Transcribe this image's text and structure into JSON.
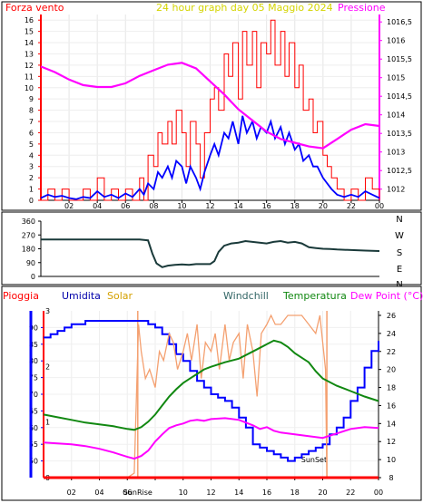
{
  "chart_data": [
    {
      "type": "line",
      "title": "24 hour graph day   05 Maggio 2024",
      "left_label": "Forza vento",
      "right_label": "Pressione",
      "x_ticks": [
        "02",
        "04",
        "06",
        "08",
        "10",
        "12",
        "14",
        "16",
        "18",
        "20",
        "22",
        "00"
      ],
      "left_ticks": [
        "0",
        "1",
        "2",
        "3",
        "4",
        "5",
        "6",
        "7",
        "8",
        "9",
        "10",
        "11",
        "12",
        "13",
        "14",
        "15",
        "16"
      ],
      "right_ticks": [
        "1012",
        "1012,5",
        "1013",
        "1013,5",
        "1014",
        "1014,5",
        "1015",
        "1015,5",
        "1016",
        "1016,5"
      ],
      "ylim_left": [
        0,
        16.5
      ],
      "ylim_right": [
        1011.7,
        1016.7
      ],
      "x_range_hours": [
        0,
        24
      ],
      "series": [
        {
          "color": "#ff0000",
          "x": [
            0,
            0.5,
            1,
            1.5,
            2,
            2.5,
            3,
            3.5,
            4,
            4.5,
            5,
            5.5,
            6,
            6.5,
            7,
            7.3,
            7.6,
            8,
            8.3,
            8.6,
            9,
            9.3,
            9.6,
            10,
            10.3,
            10.6,
            11,
            11.3,
            11.6,
            12,
            12.3,
            12.6,
            13,
            13.3,
            13.6,
            14,
            14.3,
            14.6,
            15,
            15.3,
            15.6,
            16,
            16.3,
            16.6,
            17,
            17.3,
            17.6,
            18,
            18.3,
            18.6,
            19,
            19.3,
            19.6,
            20,
            20.3,
            20.6,
            21,
            21.5,
            22,
            22.5,
            23,
            23.5,
            24
          ],
          "values": [
            0,
            1,
            0,
            1,
            0,
            0,
            1,
            0,
            2,
            0,
            1,
            0,
            1,
            0,
            2,
            0,
            4,
            3,
            6,
            5,
            7,
            5,
            8,
            6,
            3,
            7,
            5,
            2,
            6,
            9,
            10,
            8,
            13,
            11,
            14,
            9,
            15,
            12,
            15,
            10,
            14,
            13,
            16,
            12,
            15,
            11,
            14,
            10,
            12,
            8,
            9,
            6,
            7,
            4,
            3,
            2,
            1,
            0,
            1,
            0,
            2,
            1,
            0
          ]
        },
        {
          "color": "#0000ff",
          "x": [
            0,
            0.5,
            1,
            1.5,
            2,
            2.5,
            3,
            3.5,
            4,
            4.5,
            5,
            5.5,
            6,
            6.5,
            7,
            7.3,
            7.6,
            8,
            8.3,
            8.6,
            9,
            9.3,
            9.6,
            10,
            10.3,
            10.6,
            11,
            11.3,
            11.6,
            12,
            12.3,
            12.6,
            13,
            13.3,
            13.6,
            14,
            14.3,
            14.6,
            15,
            15.3,
            15.6,
            16,
            16.3,
            16.6,
            17,
            17.3,
            17.6,
            18,
            18.3,
            18.6,
            19,
            19.3,
            19.6,
            20,
            20.3,
            20.6,
            21,
            21.5,
            22,
            22.5,
            23,
            23.5,
            24
          ],
          "values": [
            0.2,
            0.5,
            0.3,
            0.4,
            0.2,
            0.1,
            0.3,
            0.2,
            0.8,
            0.3,
            0.5,
            0.2,
            0.6,
            0.3,
            1,
            0.5,
            1.5,
            1,
            2.5,
            2,
            3,
            2,
            3.5,
            3,
            1.5,
            3,
            2,
            1,
            2.5,
            4,
            5,
            4,
            6,
            5.5,
            7,
            5,
            7.5,
            6,
            7,
            5.5,
            6.5,
            6,
            7,
            5.5,
            6.5,
            5,
            6,
            4.5,
            5,
            3.5,
            4,
            3,
            3,
            2,
            1.5,
            1,
            0.5,
            0.3,
            0.5,
            0.3,
            0.8,
            0.5,
            0.2
          ]
        },
        {
          "color": "#ff00ff",
          "axis": "right",
          "x": [
            0,
            1,
            2,
            3,
            4,
            5,
            6,
            7,
            8,
            9,
            10,
            11,
            12,
            13,
            14,
            15,
            16,
            17,
            18,
            19,
            20,
            21,
            22,
            23,
            24
          ],
          "values": [
            1015.3,
            1015.15,
            1014.95,
            1014.8,
            1014.75,
            1014.75,
            1014.85,
            1015.05,
            1015.2,
            1015.35,
            1015.4,
            1015.25,
            1014.9,
            1014.55,
            1014.15,
            1013.85,
            1013.55,
            1013.35,
            1013.25,
            1013.15,
            1013.1,
            1013.35,
            1013.6,
            1013.75,
            1013.7
          ]
        }
      ]
    },
    {
      "type": "line",
      "right_labels": [
        "N",
        "W",
        "S",
        "E",
        "N"
      ],
      "left_ticks": [
        "360",
        "270",
        "180",
        "90",
        "0"
      ],
      "ylim": [
        0,
        360
      ],
      "series": [
        {
          "color": "#1a3a3a",
          "x": [
            0,
            1,
            2,
            3,
            4,
            5,
            6,
            7,
            7.6,
            7.9,
            8.2,
            8.6,
            9,
            9.5,
            10,
            10.5,
            11,
            11.5,
            12,
            12.3,
            12.6,
            13,
            13.5,
            14,
            14.5,
            15,
            15.5,
            16,
            16.5,
            17,
            17.5,
            18,
            18.5,
            19,
            19.5,
            20,
            20.5,
            21,
            22,
            23,
            24
          ],
          "values": [
            240,
            240,
            240,
            240,
            240,
            240,
            240,
            240,
            235,
            150,
            85,
            60,
            70,
            75,
            78,
            75,
            80,
            80,
            80,
            100,
            160,
            200,
            215,
            220,
            230,
            225,
            220,
            215,
            225,
            230,
            220,
            225,
            215,
            190,
            185,
            180,
            178,
            175,
            172,
            168,
            165
          ]
        }
      ]
    },
    {
      "type": "line",
      "labels": {
        "pioggia": "Pioggia",
        "umidita": "Umidita",
        "solar": "Solar",
        "windchill": "Windchill",
        "temperatura": "Temperatura",
        "dewpoint": "Dew Point (°C)"
      },
      "left_ticks": [
        "50",
        "55",
        "60",
        "65",
        "70",
        "75",
        "80",
        "85",
        "90"
      ],
      "right_ticks": [
        "8",
        "10",
        "12",
        "14",
        "16",
        "18",
        "20",
        "22",
        "24",
        "26"
      ],
      "rain_ticks": [
        "0",
        "1",
        "2",
        "3"
      ],
      "ylim_left": [
        45,
        95
      ],
      "ylim_right": [
        8,
        26.5
      ],
      "sunrise_hour": 6.75,
      "sunset_hour": 20.3,
      "sunrise_label": "SunRise",
      "sunset_label": "SunSet",
      "series": [
        {
          "name": "Umidita",
          "color": "#0000ff",
          "axis": "left",
          "x": [
            0,
            0.5,
            1,
            1.5,
            2,
            3,
            4,
            5,
            6,
            7,
            7.5,
            8,
            8.5,
            9,
            9.5,
            10,
            10.5,
            11,
            11.5,
            12,
            12.5,
            13,
            13.5,
            14,
            14.5,
            15,
            15.5,
            16,
            16.5,
            17,
            17.5,
            18,
            18.5,
            19,
            19.5,
            20,
            20.5,
            21,
            21.5,
            22,
            22.5,
            23,
            23.5,
            24
          ],
          "values": [
            87,
            88,
            89,
            90,
            91,
            92,
            92,
            92,
            92,
            92,
            91,
            90,
            88,
            85,
            82,
            80,
            77,
            74,
            72,
            70,
            69,
            68,
            66,
            63,
            60,
            55,
            54,
            53,
            52,
            51,
            50,
            51,
            52,
            53,
            54,
            55,
            58,
            60,
            63,
            68,
            72,
            78,
            83,
            86
          ]
        },
        {
          "name": "Solar",
          "color": "#f4a070",
          "axis": "right",
          "x": [
            0,
            1,
            2,
            3,
            4,
            5,
            6,
            6.5,
            6.8,
            7,
            7.3,
            7.6,
            8,
            8.3,
            8.6,
            9,
            9.3,
            9.6,
            10,
            10.3,
            10.6,
            11,
            11.3,
            11.6,
            12,
            12.3,
            12.6,
            13,
            13.3,
            13.6,
            14,
            14.3,
            14.6,
            15,
            15.3,
            15.6,
            16,
            16.3,
            16.6,
            17,
            17.5,
            18,
            18.5,
            19,
            19.5,
            19.8,
            20,
            20.2,
            20.3,
            21,
            22,
            23,
            24
          ],
          "values": [
            8,
            8,
            8,
            8,
            8,
            8,
            8,
            8.5,
            25,
            22,
            19,
            20,
            18,
            22,
            21,
            24,
            23,
            20,
            22,
            24,
            21,
            25,
            19,
            23,
            22,
            24,
            20,
            25,
            21,
            23,
            24,
            19,
            25,
            22,
            17,
            24,
            25,
            26,
            25,
            25,
            26,
            26,
            26,
            25,
            24,
            26,
            23,
            20,
            8,
            8,
            8,
            8,
            8
          ]
        },
        {
          "name": "Temperatura",
          "color": "#118811",
          "axis": "right",
          "x": [
            0,
            1,
            2,
            3,
            4,
            5,
            6,
            6.5,
            7,
            7.5,
            8,
            8.5,
            9,
            9.5,
            10,
            10.5,
            11,
            11.5,
            12,
            13,
            14,
            15,
            16,
            16.5,
            17,
            17.5,
            18,
            18.5,
            19,
            19.5,
            20,
            21,
            22,
            23,
            24
          ],
          "values": [
            15,
            14.7,
            14.4,
            14.1,
            13.9,
            13.7,
            13.4,
            13.3,
            13.6,
            14.2,
            15,
            16,
            17,
            17.8,
            18.5,
            19,
            19.5,
            20,
            20.3,
            20.8,
            21.2,
            22,
            22.8,
            23.2,
            23,
            22.5,
            21.8,
            21.3,
            20.8,
            19.8,
            19,
            18.2,
            17.6,
            17,
            16.5
          ]
        },
        {
          "name": "Dew Point (°C)",
          "color": "#ff00ff",
          "axis": "right",
          "x": [
            0,
            1,
            2,
            3,
            4,
            5,
            6,
            6.5,
            7,
            7.5,
            8,
            8.5,
            9,
            9.5,
            10,
            10.5,
            11,
            11.5,
            12,
            13,
            14,
            15,
            15.5,
            16,
            16.5,
            17,
            17.5,
            18,
            19,
            20,
            21,
            22,
            23,
            24
          ],
          "values": [
            11.9,
            11.8,
            11.7,
            11.5,
            11.2,
            10.8,
            10.3,
            10.1,
            10.4,
            11,
            12,
            12.8,
            13.5,
            13.8,
            14,
            14.3,
            14.4,
            14.3,
            14.5,
            14.6,
            14.4,
            13.8,
            13.4,
            13.6,
            13.2,
            13,
            12.9,
            12.8,
            12.6,
            12.4,
            12.9,
            13.4,
            13.6,
            13.5
          ]
        },
        {
          "name": "Pioggia",
          "color": "#ff0000",
          "axis": "rain",
          "x": [
            0,
            24
          ],
          "values": [
            0,
            0
          ]
        }
      ]
    }
  ]
}
